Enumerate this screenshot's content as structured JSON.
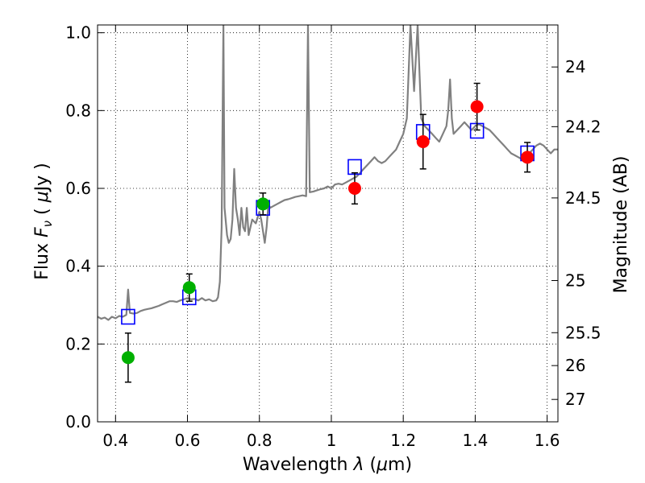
{
  "chart_data": {
    "type": "scatter",
    "xlabel": "Wavelength",
    "xlabel_symbol": "λ",
    "xlabel_unit_open": " (",
    "xlabel_mu": "μ",
    "xlabel_unit_close": "m)",
    "ylabel": "Flux",
    "ylabel_symbol": "F",
    "ylabel_subscript": "ν",
    "ylabel_unit_open": " ( ",
    "ylabel_mu": "μ",
    "ylabel_unit_close": "Jy )",
    "y2label": "Magnitude (AB)",
    "xlim": [
      0.35,
      1.63
    ],
    "ylim": [
      0,
      1.02
    ],
    "grid": true,
    "x_ticks": [
      {
        "value": 0.4,
        "label": "0.4"
      },
      {
        "value": 0.6,
        "label": "0.6"
      },
      {
        "value": 0.8,
        "label": "0.8"
      },
      {
        "value": 1.0,
        "label": "1"
      },
      {
        "value": 1.2,
        "label": "1.2"
      },
      {
        "value": 1.4,
        "label": "1.4"
      },
      {
        "value": 1.6,
        "label": "1.6"
      }
    ],
    "y_ticks": [
      {
        "value": 0.0,
        "label": "0.0"
      },
      {
        "value": 0.2,
        "label": "0.2"
      },
      {
        "value": 0.4,
        "label": "0.4"
      },
      {
        "value": 0.6,
        "label": "0.6"
      },
      {
        "value": 0.8,
        "label": "0.8"
      },
      {
        "value": 1.0,
        "label": "1.0"
      }
    ],
    "magnitude_ticks": [
      {
        "mag": 24,
        "label": "24"
      },
      {
        "mag": 24.2,
        "label": "24.2"
      },
      {
        "mag": 24.5,
        "label": "24.5"
      },
      {
        "mag": 25,
        "label": "25"
      },
      {
        "mag": 25.5,
        "label": "25.5"
      },
      {
        "mag": 26,
        "label": "26"
      },
      {
        "mag": 27,
        "label": "27"
      }
    ],
    "series": [
      {
        "kind": "spectrum",
        "color": "#808080",
        "points": [
          [
            0.35,
            0.27
          ],
          [
            0.36,
            0.265
          ],
          [
            0.37,
            0.268
          ],
          [
            0.38,
            0.262
          ],
          [
            0.39,
            0.27
          ],
          [
            0.4,
            0.266
          ],
          [
            0.41,
            0.272
          ],
          [
            0.42,
            0.27
          ],
          [
            0.43,
            0.275
          ],
          [
            0.435,
            0.34
          ],
          [
            0.44,
            0.28
          ],
          [
            0.45,
            0.278
          ],
          [
            0.46,
            0.28
          ],
          [
            0.47,
            0.285
          ],
          [
            0.48,
            0.288
          ],
          [
            0.49,
            0.29
          ],
          [
            0.5,
            0.292
          ],
          [
            0.51,
            0.295
          ],
          [
            0.52,
            0.298
          ],
          [
            0.53,
            0.302
          ],
          [
            0.54,
            0.306
          ],
          [
            0.55,
            0.31
          ],
          [
            0.56,
            0.31
          ],
          [
            0.57,
            0.308
          ],
          [
            0.58,
            0.312
          ],
          [
            0.59,
            0.315
          ],
          [
            0.6,
            0.318
          ],
          [
            0.61,
            0.315
          ],
          [
            0.62,
            0.316
          ],
          [
            0.63,
            0.312
          ],
          [
            0.64,
            0.318
          ],
          [
            0.65,
            0.312
          ],
          [
            0.66,
            0.315
          ],
          [
            0.67,
            0.31
          ],
          [
            0.68,
            0.312
          ],
          [
            0.685,
            0.32
          ],
          [
            0.69,
            0.36
          ],
          [
            0.695,
            0.5
          ],
          [
            0.7,
            1.02
          ],
          [
            0.703,
            0.55
          ],
          [
            0.71,
            0.48
          ],
          [
            0.715,
            0.46
          ],
          [
            0.72,
            0.47
          ],
          [
            0.725,
            0.52
          ],
          [
            0.73,
            0.65
          ],
          [
            0.735,
            0.55
          ],
          [
            0.74,
            0.52
          ],
          [
            0.745,
            0.48
          ],
          [
            0.75,
            0.55
          ],
          [
            0.755,
            0.5
          ],
          [
            0.76,
            0.49
          ],
          [
            0.765,
            0.55
          ],
          [
            0.77,
            0.48
          ],
          [
            0.78,
            0.52
          ],
          [
            0.79,
            0.51
          ],
          [
            0.8,
            0.54
          ],
          [
            0.805,
            0.52
          ],
          [
            0.81,
            0.49
          ],
          [
            0.815,
            0.46
          ],
          [
            0.82,
            0.5
          ],
          [
            0.825,
            0.56
          ],
          [
            0.83,
            0.55
          ],
          [
            0.84,
            0.555
          ],
          [
            0.85,
            0.56
          ],
          [
            0.86,
            0.565
          ],
          [
            0.87,
            0.57
          ],
          [
            0.88,
            0.572
          ],
          [
            0.89,
            0.575
          ],
          [
            0.9,
            0.578
          ],
          [
            0.91,
            0.58
          ],
          [
            0.92,
            0.582
          ],
          [
            0.93,
            0.58
          ],
          [
            0.935,
            1.02
          ],
          [
            0.94,
            0.59
          ],
          [
            0.95,
            0.592
          ],
          [
            0.96,
            0.595
          ],
          [
            0.97,
            0.598
          ],
          [
            0.98,
            0.6
          ],
          [
            0.99,
            0.605
          ],
          [
            1.0,
            0.6
          ],
          [
            1.01,
            0.61
          ],
          [
            1.02,
            0.612
          ],
          [
            1.03,
            0.61
          ],
          [
            1.04,
            0.615
          ],
          [
            1.05,
            0.62
          ],
          [
            1.06,
            0.625
          ],
          [
            1.07,
            0.63
          ],
          [
            1.08,
            0.64
          ],
          [
            1.09,
            0.65
          ],
          [
            1.1,
            0.66
          ],
          [
            1.11,
            0.67
          ],
          [
            1.12,
            0.68
          ],
          [
            1.13,
            0.67
          ],
          [
            1.14,
            0.665
          ],
          [
            1.15,
            0.67
          ],
          [
            1.16,
            0.68
          ],
          [
            1.17,
            0.69
          ],
          [
            1.18,
            0.7
          ],
          [
            1.19,
            0.72
          ],
          [
            1.2,
            0.74
          ],
          [
            1.21,
            0.78
          ],
          [
            1.22,
            1.02
          ],
          [
            1.23,
            0.85
          ],
          [
            1.24,
            1.02
          ],
          [
            1.25,
            0.78
          ],
          [
            1.26,
            0.76
          ],
          [
            1.27,
            0.75
          ],
          [
            1.28,
            0.74
          ],
          [
            1.29,
            0.73
          ],
          [
            1.3,
            0.72
          ],
          [
            1.31,
            0.74
          ],
          [
            1.32,
            0.76
          ],
          [
            1.325,
            0.8
          ],
          [
            1.33,
            0.88
          ],
          [
            1.335,
            0.78
          ],
          [
            1.34,
            0.74
          ],
          [
            1.35,
            0.75
          ],
          [
            1.36,
            0.76
          ],
          [
            1.37,
            0.77
          ],
          [
            1.38,
            0.76
          ],
          [
            1.39,
            0.75
          ],
          [
            1.4,
            0.76
          ],
          [
            1.41,
            0.765
          ],
          [
            1.42,
            0.76
          ],
          [
            1.43,
            0.755
          ],
          [
            1.44,
            0.75
          ],
          [
            1.45,
            0.74
          ],
          [
            1.46,
            0.73
          ],
          [
            1.47,
            0.72
          ],
          [
            1.48,
            0.71
          ],
          [
            1.49,
            0.7
          ],
          [
            1.5,
            0.69
          ],
          [
            1.51,
            0.685
          ],
          [
            1.52,
            0.68
          ],
          [
            1.53,
            0.675
          ],
          [
            1.54,
            0.68
          ],
          [
            1.55,
            0.69
          ],
          [
            1.56,
            0.7
          ],
          [
            1.57,
            0.71
          ],
          [
            1.58,
            0.715
          ],
          [
            1.59,
            0.71
          ],
          [
            1.6,
            0.7
          ],
          [
            1.61,
            0.69
          ],
          [
            1.62,
            0.7
          ],
          [
            1.63,
            0.7
          ]
        ]
      },
      {
        "kind": "model_points",
        "color": "#0000ff",
        "marker": "square",
        "x": [
          0.435,
          0.605,
          0.81,
          1.065,
          1.255,
          1.405,
          1.545
        ],
        "y": [
          0.27,
          0.32,
          0.55,
          0.655,
          0.745,
          0.748,
          0.69
        ]
      },
      {
        "kind": "observed",
        "color": "#00b000",
        "marker": "circle",
        "x": [
          0.435,
          0.605,
          0.81
        ],
        "y": [
          0.165,
          0.345,
          0.56
        ],
        "err": [
          0.063,
          0.035,
          0.028
        ]
      },
      {
        "kind": "observed",
        "color": "#ff0000",
        "marker": "circle",
        "x": [
          1.065,
          1.255,
          1.405,
          1.545
        ],
        "y": [
          0.6,
          0.72,
          0.81,
          0.68
        ],
        "err": [
          0.04,
          0.07,
          0.06,
          0.038
        ]
      }
    ]
  }
}
